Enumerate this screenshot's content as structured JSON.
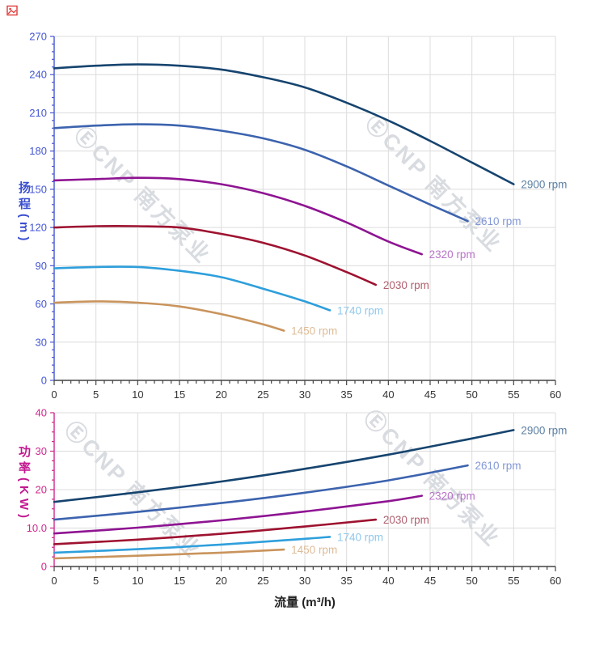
{
  "watermark": {
    "text": "ⒺCNP 南方泵业"
  },
  "chart_data": [
    {
      "type": "line",
      "name": "head-curves",
      "title": "",
      "xlabel": "",
      "ylabel": "扬程(m)",
      "xlim": [
        0,
        60
      ],
      "ylim": [
        0,
        270
      ],
      "x_major": 5,
      "x_minor": 1,
      "y_major": 30,
      "y_minor": 6,
      "grid": true,
      "x_ticks": [
        "0",
        "5",
        "10",
        "15",
        "20",
        "25",
        "30",
        "35",
        "40",
        "45",
        "50",
        "55",
        "60"
      ],
      "y_ticks": [
        "0",
        "30",
        "60",
        "90",
        "120",
        "150",
        "180",
        "210",
        "240",
        "270"
      ],
      "axis_color": "#4456d4",
      "tick_label_color": "#4456d4",
      "x_axis_color": "#444444",
      "x_tick_label_color": "#333333",
      "grid_color": "#dcdcdc",
      "series": [
        {
          "name": "2900 rpm",
          "color": "#16446f",
          "label_color": "#5d80a3",
          "x": [
            0,
            5,
            10,
            15,
            20,
            25,
            30,
            35,
            40,
            45,
            50,
            55
          ],
          "y": [
            245,
            247,
            248,
            247,
            244,
            238,
            230,
            218,
            204,
            188,
            171,
            154
          ]
        },
        {
          "name": "2610 rpm",
          "color": "#3c63ae",
          "label_color": "#8298d8",
          "x": [
            0,
            5,
            10,
            15,
            20,
            25,
            30,
            35,
            40,
            45,
            49.5
          ],
          "y": [
            198,
            200,
            201,
            200,
            196,
            190,
            181,
            168,
            153,
            138,
            125
          ]
        },
        {
          "name": "2320 rpm",
          "color": "#8e1492",
          "label_color": "#b873c8",
          "x": [
            0,
            5,
            10,
            15,
            20,
            25,
            30,
            35,
            40,
            44
          ],
          "y": [
            157,
            158,
            159,
            158,
            154,
            147,
            137,
            124,
            109,
            99
          ]
        },
        {
          "name": "2030 rpm",
          "color": "#9e1230",
          "label_color": "#b05f6e",
          "x": [
            0,
            5,
            10,
            15,
            20,
            25,
            30,
            35,
            38.5
          ],
          "y": [
            120,
            121,
            121,
            120,
            115,
            108,
            98,
            85,
            75
          ]
        },
        {
          "name": "1740 rpm",
          "color": "#2e9fdc",
          "label_color": "#90c8ec",
          "x": [
            0,
            5,
            10,
            15,
            20,
            25,
            30,
            33
          ],
          "y": [
            88,
            89,
            89,
            86,
            81,
            72,
            62,
            55
          ]
        },
        {
          "name": "1450 rpm",
          "color": "#c9945c",
          "label_color": "#ddbc97",
          "x": [
            0,
            5,
            10,
            15,
            20,
            25,
            27.5
          ],
          "y": [
            61,
            62,
            61,
            58,
            52,
            44,
            39
          ]
        }
      ]
    },
    {
      "type": "line",
      "name": "power-curves",
      "title": "",
      "xlabel": "流量 (m³/h)",
      "ylabel": "功率(KW)",
      "xlim": [
        0,
        60
      ],
      "ylim": [
        0,
        40
      ],
      "x_major": 5,
      "x_minor": 1,
      "y_major": 10,
      "y_minor": 2.5,
      "grid": true,
      "x_ticks": [
        "0",
        "5",
        "10",
        "15",
        "20",
        "25",
        "30",
        "35",
        "40",
        "45",
        "50",
        "55",
        "60"
      ],
      "y_ticks": [
        "0",
        "10.0",
        "20",
        "30",
        "40"
      ],
      "axis_color": "#d0288e",
      "tick_label_color": "#d0288e",
      "x_axis_color": "#444444",
      "x_tick_label_color": "#333333",
      "grid_color": "#dcdcdc",
      "series": [
        {
          "name": "2900 rpm",
          "color": "#16446f",
          "label_color": "#5d80a3",
          "x": [
            0,
            10,
            20,
            30,
            40,
            50,
            55
          ],
          "y": [
            16.8,
            19.3,
            22.1,
            25.4,
            29.1,
            33.3,
            35.5
          ]
        },
        {
          "name": "2610 rpm",
          "color": "#3c63ae",
          "label_color": "#8298d8",
          "x": [
            0,
            10,
            20,
            30,
            40,
            49.5
          ],
          "y": [
            12.2,
            14.2,
            16.5,
            19.2,
            22.4,
            26.3
          ]
        },
        {
          "name": "2320 rpm",
          "color": "#8e1492",
          "label_color": "#b873c8",
          "x": [
            0,
            10,
            20,
            30,
            40,
            44
          ],
          "y": [
            8.6,
            10.1,
            12.0,
            14.3,
            17.0,
            18.4
          ]
        },
        {
          "name": "2030 rpm",
          "color": "#9e1230",
          "label_color": "#b05f6e",
          "x": [
            0,
            10,
            20,
            30,
            38.5
          ],
          "y": [
            5.8,
            7.0,
            8.5,
            10.4,
            12.2
          ]
        },
        {
          "name": "1740 rpm",
          "color": "#2e9fdc",
          "label_color": "#90c8ec",
          "x": [
            0,
            10,
            20,
            30,
            33
          ],
          "y": [
            3.6,
            4.5,
            5.7,
            7.2,
            7.7
          ]
        },
        {
          "name": "1450 rpm",
          "color": "#c9945c",
          "label_color": "#ddbb97",
          "x": [
            0,
            10,
            20,
            27.5
          ],
          "y": [
            2.1,
            2.8,
            3.6,
            4.4
          ]
        }
      ]
    }
  ]
}
